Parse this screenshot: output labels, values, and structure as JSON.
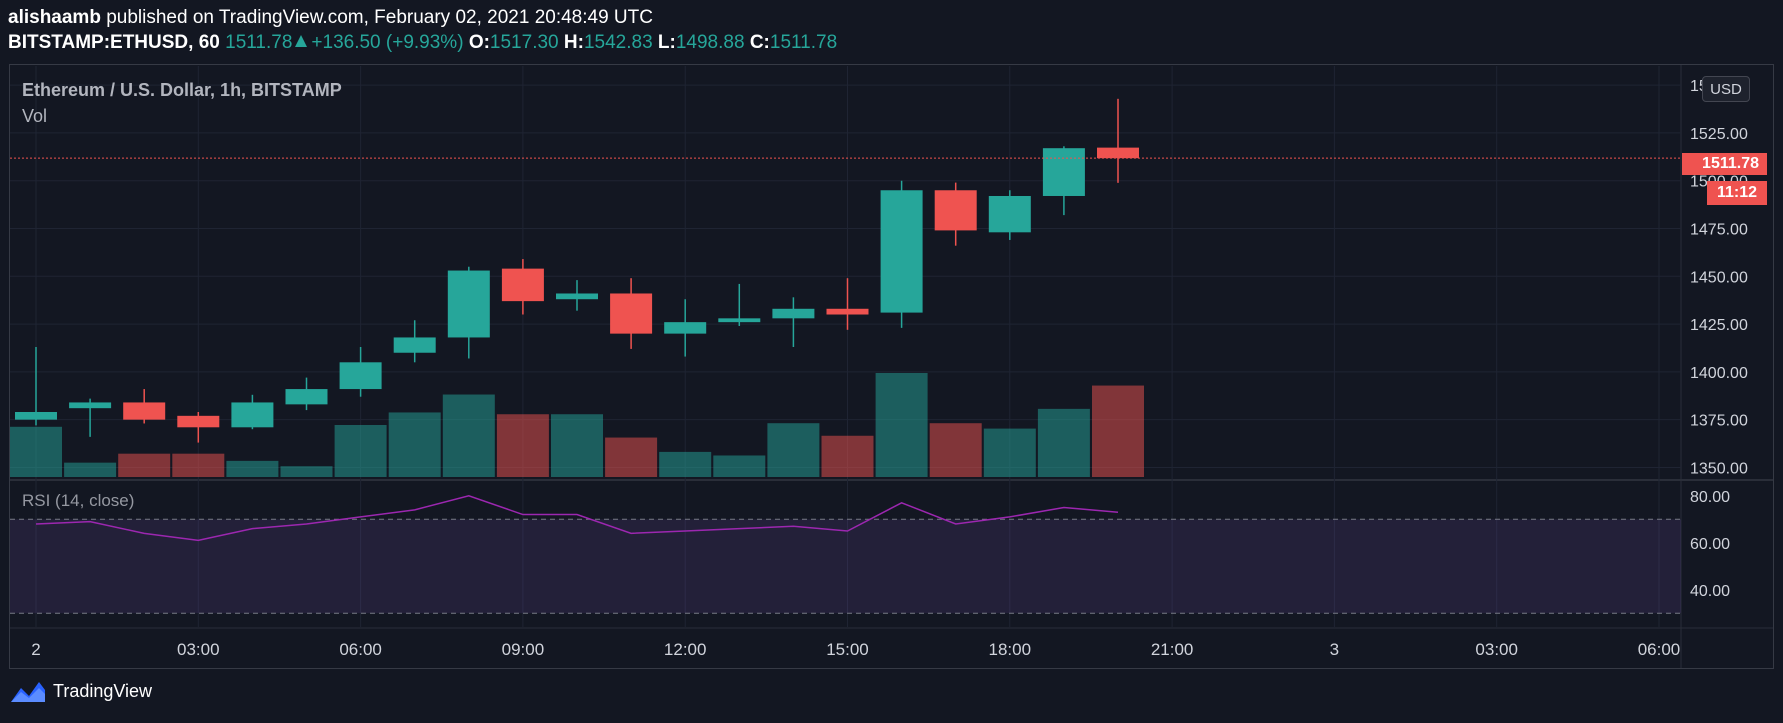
{
  "header": {
    "author": "alishaamb",
    "published": "published on TradingView.com, February 02, 2021 20:48:49 UTC",
    "symbol": "BITSTAMP:ETHUSD, 60",
    "last": "1511.78",
    "change": "+136.50 (+9.93%)",
    "o_label": "O:",
    "o_value": "1517.30",
    "h_label": "H:",
    "h_value": "1542.83",
    "l_label": "L:",
    "l_value": "1498.88",
    "c_label": "C:",
    "c_value": "1511.78"
  },
  "overlay": {
    "title": "Ethereum / U.S. Dollar, 1h, BITSTAMP",
    "vol": "Vol",
    "rsi": "RSI (14, close)"
  },
  "controls": {
    "currency": "USD",
    "price_tag": "1511.78",
    "countdown": "11:12"
  },
  "footer": {
    "brand": "TradingView"
  },
  "colors": {
    "up": "#26a69a",
    "down": "#ef5350",
    "background": "#131722",
    "grid": "#1f2433",
    "rsi_line": "#9c27b0"
  },
  "chart_data": {
    "type": "candlestick",
    "ylim": [
      1345,
      1560
    ],
    "price_ticks": [
      "1350.00",
      "1375.00",
      "1400.00",
      "1425.00",
      "1450.00",
      "1475.00",
      "1500.00",
      "1525.00",
      "1550.00"
    ],
    "x_ticks": [
      "2",
      "03:00",
      "06:00",
      "09:00",
      "12:00",
      "15:00",
      "18:00",
      "21:00",
      "3",
      "03:00",
      "06:00"
    ],
    "candles": [
      {
        "time": "00:00",
        "o": 1375,
        "h": 1413,
        "l": 1372,
        "c": 1379,
        "vol": 28
      },
      {
        "time": "01:00",
        "o": 1381,
        "h": 1386,
        "l": 1366,
        "c": 1384,
        "vol": 8
      },
      {
        "time": "02:00",
        "o": 1384,
        "h": 1391,
        "l": 1373,
        "c": 1375,
        "vol": 13
      },
      {
        "time": "03:00",
        "o": 1377,
        "h": 1379,
        "l": 1363,
        "c": 1371,
        "vol": 13
      },
      {
        "time": "04:00",
        "o": 1371,
        "h": 1388,
        "l": 1370,
        "c": 1384,
        "vol": 9
      },
      {
        "time": "05:00",
        "o": 1383,
        "h": 1397,
        "l": 1380,
        "c": 1391,
        "vol": 6
      },
      {
        "time": "06:00",
        "o": 1391,
        "h": 1413,
        "l": 1387,
        "c": 1405,
        "vol": 29
      },
      {
        "time": "07:00",
        "o": 1410,
        "h": 1427,
        "l": 1405,
        "c": 1418,
        "vol": 36
      },
      {
        "time": "08:00",
        "o": 1418,
        "h": 1455,
        "l": 1407,
        "c": 1453,
        "vol": 46
      },
      {
        "time": "09:00",
        "o": 1454,
        "h": 1459,
        "l": 1430,
        "c": 1437,
        "vol": 35
      },
      {
        "time": "10:00",
        "o": 1438,
        "h": 1448,
        "l": 1432,
        "c": 1441,
        "vol": 35
      },
      {
        "time": "11:00",
        "o": 1441,
        "h": 1449,
        "l": 1412,
        "c": 1420,
        "vol": 22
      },
      {
        "time": "12:00",
        "o": 1420,
        "h": 1438,
        "l": 1408,
        "c": 1426,
        "vol": 14
      },
      {
        "time": "13:00",
        "o": 1426,
        "h": 1446,
        "l": 1424,
        "c": 1428,
        "vol": 12
      },
      {
        "time": "14:00",
        "o": 1428,
        "h": 1439,
        "l": 1413,
        "c": 1433,
        "vol": 30
      },
      {
        "time": "15:00",
        "o": 1433,
        "h": 1449,
        "l": 1422,
        "c": 1430,
        "vol": 23
      },
      {
        "time": "16:00",
        "o": 1431,
        "h": 1500,
        "l": 1423,
        "c": 1495,
        "vol": 58
      },
      {
        "time": "17:00",
        "o": 1495,
        "h": 1499,
        "l": 1466,
        "c": 1474,
        "vol": 30
      },
      {
        "time": "18:00",
        "o": 1473,
        "h": 1495,
        "l": 1469,
        "c": 1492,
        "vol": 27
      },
      {
        "time": "19:00",
        "o": 1492,
        "h": 1518,
        "l": 1482,
        "c": 1517,
        "vol": 38
      },
      {
        "time": "20:00",
        "o": 1517.3,
        "h": 1542.83,
        "l": 1498.88,
        "c": 1511.78,
        "vol": 51
      }
    ],
    "rsi": {
      "ylim": [
        25,
        85
      ],
      "ticks": [
        "40.00",
        "60.00",
        "80.00"
      ],
      "bands": [
        30,
        70
      ],
      "values": [
        68,
        69,
        64,
        61,
        66,
        68,
        71,
        74,
        80,
        72,
        72,
        64,
        65,
        66,
        67,
        65,
        77,
        68,
        71,
        75,
        73
      ]
    }
  }
}
